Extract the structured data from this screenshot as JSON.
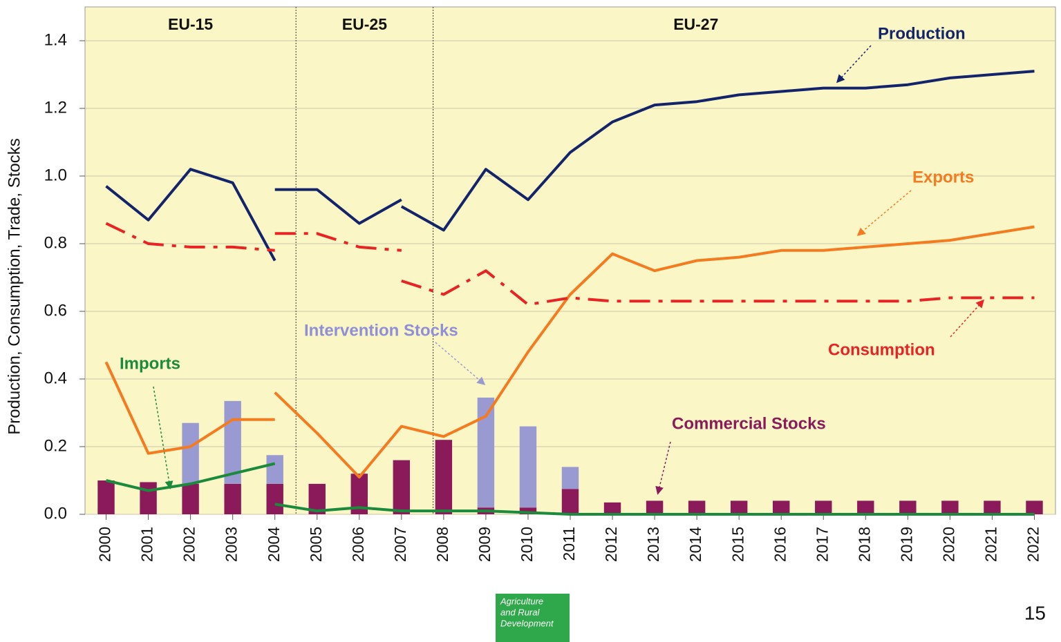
{
  "chart_data": {
    "type": "combo",
    "y_label": "Production, Consumption, Trade, Stocks",
    "x": [
      2000,
      2001,
      2002,
      2003,
      2004,
      2005,
      2006,
      2007,
      2008,
      2009,
      2010,
      2011,
      2012,
      2013,
      2014,
      2015,
      2016,
      2017,
      2018,
      2019,
      2020,
      2021,
      2022
    ],
    "xlim": [
      1999.5,
      2022.5
    ],
    "ylim": [
      0,
      1.5
    ],
    "yticks": [
      {
        "value": 0,
        "label": "0.0"
      },
      0.2,
      0.4,
      0.6,
      0.8,
      {
        "value": 1,
        "label": "1.0"
      },
      1.2,
      1.4
    ],
    "grid": true,
    "regions": [
      "EU-15",
      "EU-25",
      "EU-27"
    ],
    "region_boundaries": [
      2004.5,
      2007.75
    ],
    "series": [
      {
        "name": "Commercial Stocks",
        "type": "bar",
        "color": "#8b1a5a",
        "values": [
          0.1,
          0.095,
          0.09,
          0.09,
          0.09,
          0.09,
          0.12,
          0.16,
          0.22,
          0.02,
          0.02,
          0.075,
          0.035,
          0.04,
          0.04,
          0.04,
          0.04,
          0.04,
          0.04,
          0.04,
          0.04,
          0.04,
          0.04
        ]
      },
      {
        "name": "Intervention Stocks",
        "type": "bar",
        "color": "#9a9ad2",
        "values": [
          0,
          0,
          0.18,
          0.245,
          0.085,
          0,
          0,
          0,
          0,
          0.325,
          0.24,
          0.065,
          0,
          0,
          0,
          0,
          0,
          0,
          0,
          0,
          0,
          0,
          0
        ]
      },
      {
        "name": "Production",
        "type": "line",
        "color": "#14246a",
        "dash": false,
        "x": [
          2000,
          2001,
          2002,
          2003,
          2004,
          null,
          2004,
          2005,
          2006,
          2007,
          null,
          2007,
          2008,
          2009,
          2010,
          2011,
          2012,
          2013,
          2014,
          2015,
          2016,
          2017,
          2018,
          2019,
          2020,
          2021,
          2022
        ],
        "values": [
          0.97,
          0.87,
          1.02,
          0.98,
          0.75,
          null,
          0.96,
          0.96,
          0.86,
          0.93,
          null,
          0.91,
          0.84,
          1.02,
          0.93,
          1.07,
          1.16,
          1.21,
          1.22,
          1.24,
          1.25,
          1.26,
          1.26,
          1.27,
          1.29,
          1.3,
          1.31
        ]
      },
      {
        "name": "Exports",
        "type": "line",
        "color": "#f47b20",
        "dash": false,
        "x": [
          2000,
          2001,
          2002,
          2003,
          2004,
          null,
          2004,
          2005,
          2006,
          2007,
          2008,
          2009,
          2010,
          2011,
          2012,
          2013,
          2014,
          2015,
          2016,
          2017,
          2018,
          2019,
          2020,
          2021,
          2022
        ],
        "values": [
          0.45,
          0.18,
          0.2,
          0.28,
          0.28,
          null,
          0.36,
          0.24,
          0.11,
          0.26,
          0.23,
          0.29,
          0.48,
          0.65,
          0.77,
          0.72,
          0.75,
          0.76,
          0.78,
          0.78,
          0.79,
          0.8,
          0.81,
          0.83,
          0.85
        ]
      },
      {
        "name": "Consumption",
        "type": "line",
        "color": "#e82323",
        "dash": true,
        "x": [
          2000,
          2001,
          2002,
          2003,
          2004,
          null,
          2004,
          2005,
          2006,
          2007,
          null,
          2007,
          2008,
          2009,
          2010,
          2011,
          2012,
          2013,
          2014,
          2015,
          2016,
          2017,
          2018,
          2019,
          2020,
          2021,
          2022
        ],
        "values": [
          0.86,
          0.8,
          0.79,
          0.79,
          0.78,
          null,
          0.83,
          0.83,
          0.79,
          0.78,
          null,
          0.69,
          0.65,
          0.72,
          0.62,
          0.64,
          0.63,
          0.63,
          0.63,
          0.63,
          0.63,
          0.63,
          0.63,
          0.63,
          0.64,
          0.64,
          0.64
        ]
      },
      {
        "name": "Imports",
        "type": "line",
        "color": "#1b8a3c",
        "dash": false,
        "x": [
          2000,
          2001,
          2002,
          2003,
          2004,
          null,
          2004,
          2005,
          2006,
          2007,
          2008,
          2009,
          2010,
          2011,
          2012,
          2013,
          2014,
          2015,
          2016,
          2017,
          2018,
          2019,
          2020,
          2021,
          2022
        ],
        "values": [
          0.1,
          0.07,
          0.09,
          0.12,
          0.15,
          null,
          0.03,
          0.01,
          0.02,
          0.01,
          0.01,
          0.01,
          0.005,
          0,
          0,
          0,
          0,
          0,
          0,
          0,
          0,
          0,
          0,
          0,
          0
        ]
      }
    ]
  },
  "footer": {
    "logo_lines": [
      "Agriculture",
      "and Rural",
      "Development"
    ],
    "page_number": "15"
  }
}
